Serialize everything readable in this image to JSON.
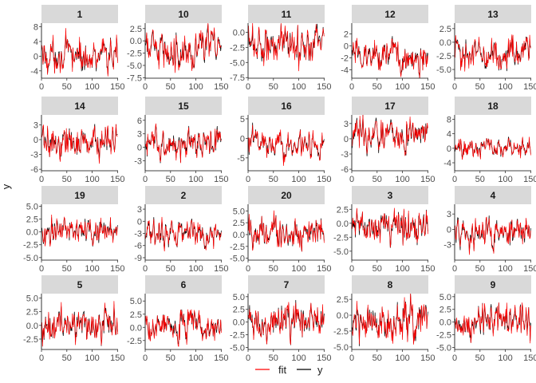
{
  "chart_data": {
    "type": "line",
    "facet_by": "panel",
    "ylabel": "y",
    "xlabel": "",
    "x_range": [
      1,
      150
    ],
    "x_ticks": [
      0,
      50,
      100,
      150
    ],
    "legend": {
      "position": "bottom",
      "entries": [
        {
          "label": "fit",
          "color": "#ff0000"
        },
        {
          "label": "y",
          "color": "#000000"
        }
      ]
    },
    "colors": {
      "fit": "#ff0000",
      "y": "#000000",
      "strip_bg": "#d9d9d9"
    },
    "panels": [
      {
        "label": "1",
        "mean": 0.0,
        "amp": 2.5,
        "ylim": [
          -6,
          9
        ],
        "yticks": [
          "8",
          "4",
          "0",
          "-4"
        ]
      },
      {
        "label": "10",
        "mean": -1.5,
        "amp": 2.0,
        "ylim": [
          -7.6,
          3.6
        ],
        "yticks": [
          "2.5",
          "0.0",
          "-2.5",
          "-5.0",
          "-7.5"
        ]
      },
      {
        "label": "11",
        "mean": -1.8,
        "amp": 1.8,
        "ylim": [
          -7.6,
          1.5
        ],
        "yticks": [
          "0.0",
          "-2.5",
          "-5.0",
          "-7.5"
        ]
      },
      {
        "label": "12",
        "mean": -1.5,
        "amp": 1.6,
        "ylim": [
          -5.4,
          3.8
        ],
        "yticks": [
          "2",
          "0",
          "-2",
          "-4"
        ]
      },
      {
        "label": "13",
        "mean": -2.0,
        "amp": 1.7,
        "ylim": [
          -6.6,
          3.5
        ],
        "yticks": [
          "2.5",
          "0.0",
          "-2.5",
          "-5.0"
        ]
      },
      {
        "label": "14",
        "mean": -0.5,
        "amp": 1.8,
        "ylim": [
          -6.3,
          5.0
        ],
        "yticks": [
          "3",
          "0",
          "-3",
          "-6"
        ]
      },
      {
        "label": "15",
        "mean": 0.8,
        "amp": 1.8,
        "ylim": [
          -5.2,
          7.2
        ],
        "yticks": [
          "6",
          "3",
          "0",
          "-3"
        ]
      },
      {
        "label": "16",
        "mean": -1.5,
        "amp": 1.8,
        "ylim": [
          -8.3,
          6.0
        ],
        "yticks": [
          "5",
          "0",
          "-5"
        ]
      },
      {
        "label": "17",
        "mean": 0.8,
        "amp": 1.8,
        "ylim": [
          -6.3,
          4.7
        ],
        "yticks": [
          "3",
          "0",
          "-3",
          "-6"
        ]
      },
      {
        "label": "18",
        "mean": 0.0,
        "amp": 1.5,
        "ylim": [
          -6.2,
          9.2
        ],
        "yticks": [
          "8",
          "4",
          "0",
          "-4"
        ]
      },
      {
        "label": "19",
        "mean": 0.3,
        "amp": 1.5,
        "ylim": [
          -5.5,
          5.4
        ],
        "yticks": [
          "5.0",
          "2.5",
          "0.0",
          "-2.5",
          "-5.0"
        ]
      },
      {
        "label": "2",
        "mean": -3.0,
        "amp": 1.8,
        "ylim": [
          -9.6,
          4.2
        ],
        "yticks": [
          "3",
          "0",
          "-3",
          "-6",
          "-9"
        ]
      },
      {
        "label": "20",
        "mean": 0.3,
        "amp": 1.7,
        "ylim": [
          -5.4,
          6.4
        ],
        "yticks": [
          "5.0",
          "2.5",
          "0.0",
          "-2.5",
          "-5.0"
        ]
      },
      {
        "label": "3",
        "mean": -0.5,
        "amp": 1.7,
        "ylim": [
          -6.6,
          3.4
        ],
        "yticks": [
          "2.5",
          "0.0",
          "-2.5",
          "-5.0"
        ]
      },
      {
        "label": "4",
        "mean": -0.5,
        "amp": 1.7,
        "ylim": [
          -6.0,
          4.9
        ],
        "yticks": [
          "3",
          "0",
          "-3"
        ]
      },
      {
        "label": "5",
        "mean": 0.3,
        "amp": 1.8,
        "ylim": [
          -4.4,
          5.8
        ],
        "yticks": [
          "5.0",
          "2.5",
          "0.0",
          "-2.5"
        ]
      },
      {
        "label": "6",
        "mean": 0.3,
        "amp": 1.6,
        "ylim": [
          -4.2,
          6.4
        ],
        "yticks": [
          "5.0",
          "2.5",
          "0.0",
          "-2.5"
        ]
      },
      {
        "label": "7",
        "mean": 0.3,
        "amp": 1.9,
        "ylim": [
          -5.4,
          5.6
        ],
        "yticks": [
          "5.0",
          "2.5",
          "0.0",
          "-2.5",
          "-5.0"
        ]
      },
      {
        "label": "8",
        "mean": -1.0,
        "amp": 1.7,
        "ylim": [
          -5.4,
          3.4
        ],
        "yticks": [
          "2.5",
          "0.0",
          "-2.5",
          "-5.0"
        ]
      },
      {
        "label": "9",
        "mean": 0.0,
        "amp": 1.9,
        "ylim": [
          -5.4,
          5.6
        ],
        "yticks": [
          "5.0",
          "2.5",
          "0.0",
          "-2.5",
          "-5.0"
        ]
      }
    ]
  }
}
